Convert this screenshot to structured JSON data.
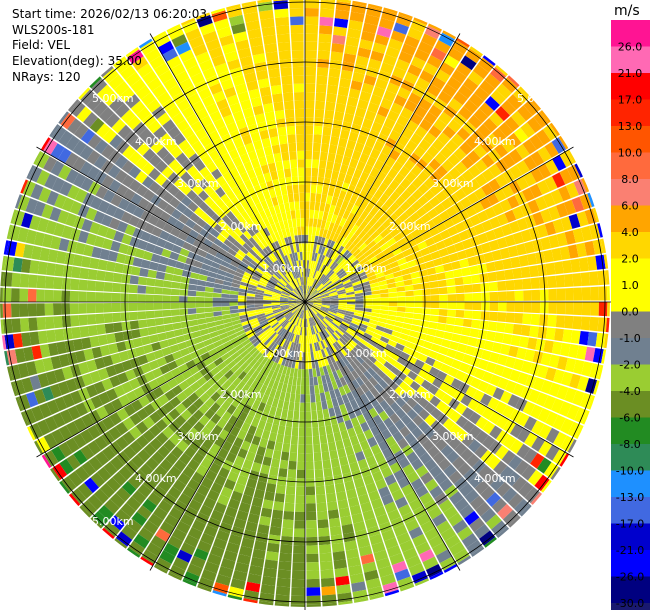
{
  "header": {
    "start_time": "Start time: 2026/02/13 06:20:03",
    "instrument": "WLS200s-181",
    "field": "Field: VEL",
    "elevation": "Elevation(deg): 35.00",
    "nrays": "NRays: 120"
  },
  "chart_data": {
    "type": "heatmap",
    "projection": "polar PPI scan",
    "field": "VEL",
    "units": "m/s",
    "nrays": 120,
    "range_km": [
      0,
      5.6
    ],
    "ring_labels": [
      "1.00km",
      "2.00km",
      "3.00km",
      "4.00km",
      "5.00km"
    ],
    "ring_values_km": [
      1,
      2,
      3,
      4,
      5
    ],
    "spoke_angles_deg": [
      0,
      30,
      60,
      90,
      120,
      150,
      180,
      210,
      240,
      270,
      300,
      330
    ],
    "colorbar": {
      "unit_label": "m/s",
      "ticks": [
        "26.0",
        "21.0",
        "17.0",
        "13.0",
        "10.0",
        "8.0",
        "6.0",
        "4.0",
        "2.0",
        "1.0",
        "0.0",
        "-1.0",
        "-2.0",
        "-4.0",
        "-6.0",
        "-8.0",
        "-10.0",
        "-13.0",
        "-17.0",
        "-21.0",
        "-26.0",
        "-30.0"
      ],
      "colors": [
        "#ff1493",
        "#ff69b4",
        "#ff0000",
        "#ff2400",
        "#ff5500",
        "#ff6a3d",
        "#fa8072",
        "#ffa500",
        "#ffd700",
        "#ffff00",
        "#ffff00",
        "#808080",
        "#708090",
        "#9acd32",
        "#6b8e23",
        "#228b22",
        "#2e8b57",
        "#1e90ff",
        "#4169e1",
        "#0000cd",
        "#0000ff",
        "#000080",
        "#191970"
      ]
    },
    "regions": [
      {
        "azimuth_deg": [
          0,
          75
        ],
        "velocity_ms": "2.0 to 8.0",
        "dominant": "4.0"
      },
      {
        "azimuth_deg": [
          75,
          130
        ],
        "velocity_ms": "1.0 to 4.0",
        "dominant": "2.0"
      },
      {
        "azimuth_deg": [
          130,
          180
        ],
        "velocity_ms": "-2.0 to 1.0",
        "dominant": "-1.0"
      },
      {
        "azimuth_deg": [
          180,
          300
        ],
        "velocity_ms": "-6.0 to -2.0",
        "dominant": "-4.0"
      },
      {
        "azimuth_deg": [
          300,
          360
        ],
        "velocity_ms": "-2.0 to 2.0",
        "dominant": "0.0"
      }
    ]
  }
}
